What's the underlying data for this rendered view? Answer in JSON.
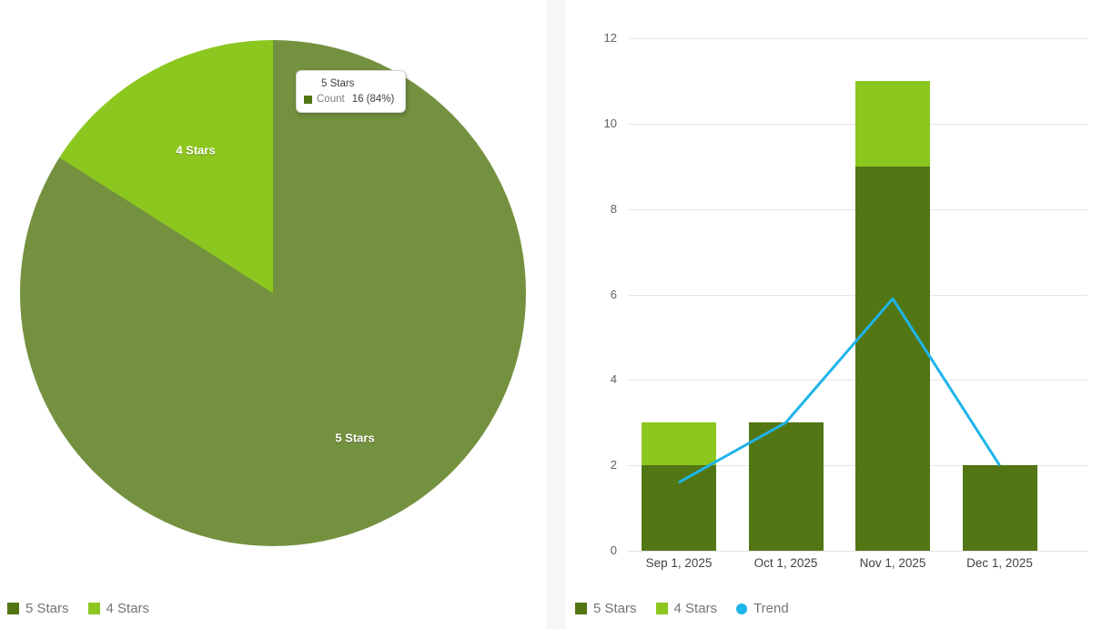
{
  "colors": {
    "dark_green": "#527614",
    "light_green": "#8CC71F",
    "pie_dark_hovered": "#74913F",
    "trend_blue": "#1EB5EA",
    "legend_text": "#757575",
    "ytick_text": "#616161",
    "xtick_text": "#424242",
    "gridline": "#e6e6e6",
    "panel_divider": "#f5f6f7"
  },
  "chart_data": [
    {
      "type": "pie",
      "title": "",
      "start_angle_deg": 0,
      "direction": "clockwise",
      "slices": [
        {
          "label": "5 Stars",
          "pct": 84,
          "count": 16,
          "color": "#74913F",
          "hovered": true
        },
        {
          "label": "4 Stars",
          "pct": 16,
          "count": 3,
          "color": "#8CC71F"
        }
      ],
      "tooltip": {
        "title": "5 Stars",
        "series": "Count",
        "value": "16 (84%)",
        "swatch_color": "#527614"
      },
      "legend_position": "bottom-left",
      "legend": [
        {
          "label": "5 Stars",
          "color": "#527614",
          "shape": "square"
        },
        {
          "label": "4 Stars",
          "color": "#8CC71F",
          "shape": "square"
        }
      ]
    },
    {
      "type": "bar",
      "subtype": "stacked-bars-with-line-overlay",
      "title": "",
      "xlabel": "",
      "ylabel": "",
      "categories": [
        "Sep 1, 2025",
        "Oct 1, 2025",
        "Nov 1, 2025",
        "Dec 1, 2025"
      ],
      "series": [
        {
          "name": "5 Stars",
          "render": "bar",
          "color": "#527614",
          "values": [
            2,
            3,
            9,
            2
          ]
        },
        {
          "name": "4 Stars",
          "render": "bar",
          "color": "#8CC71F",
          "values": [
            1,
            0,
            2,
            0
          ]
        },
        {
          "name": "Trend",
          "render": "line",
          "color": "#1EB5EA",
          "values": [
            1.6,
            3,
            5.9,
            2
          ]
        }
      ],
      "stacked_totals": [
        3,
        3,
        11,
        2
      ],
      "ylim": [
        0,
        12
      ],
      "yticks": [
        0,
        2,
        4,
        6,
        8,
        10,
        12
      ],
      "grid": true,
      "legend_position": "bottom-left",
      "legend": [
        {
          "label": "5 Stars",
          "color": "#527614",
          "shape": "square"
        },
        {
          "label": "4 Stars",
          "color": "#8CC71F",
          "shape": "square"
        },
        {
          "label": "Trend",
          "color": "#1EB5EA",
          "shape": "circle"
        }
      ]
    }
  ]
}
